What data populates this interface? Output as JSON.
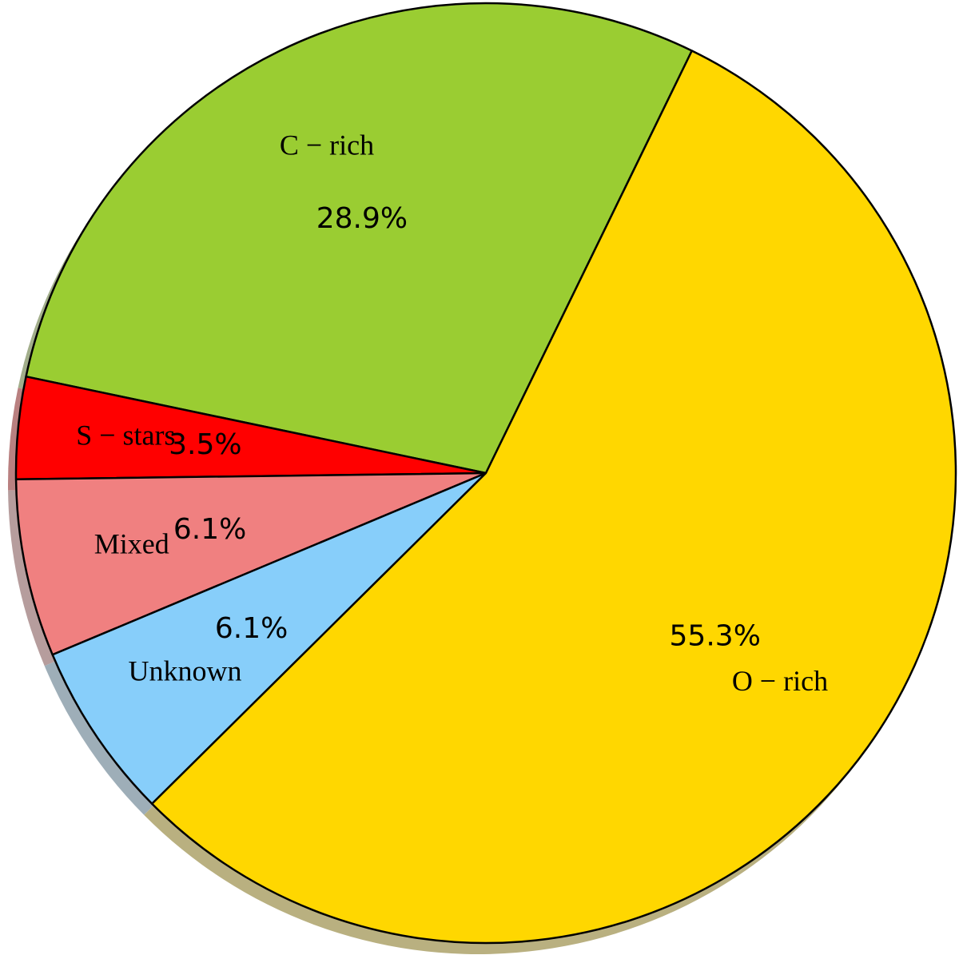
{
  "chart_data": {
    "type": "pie",
    "categories": [
      "C − rich",
      "S − stars",
      "Mixed",
      "Unknown",
      "O − rich"
    ],
    "values": [
      28.9,
      3.5,
      6.1,
      6.1,
      55.3
    ],
    "value_labels": [
      "28.9%",
      "3.5%",
      "6.1%",
      "6.1%",
      "55.3%"
    ],
    "colors": [
      "#9acd32",
      "#ff0000",
      "#f08080",
      "#87cefa",
      "#ffd700"
    ],
    "shadow": true
  }
}
